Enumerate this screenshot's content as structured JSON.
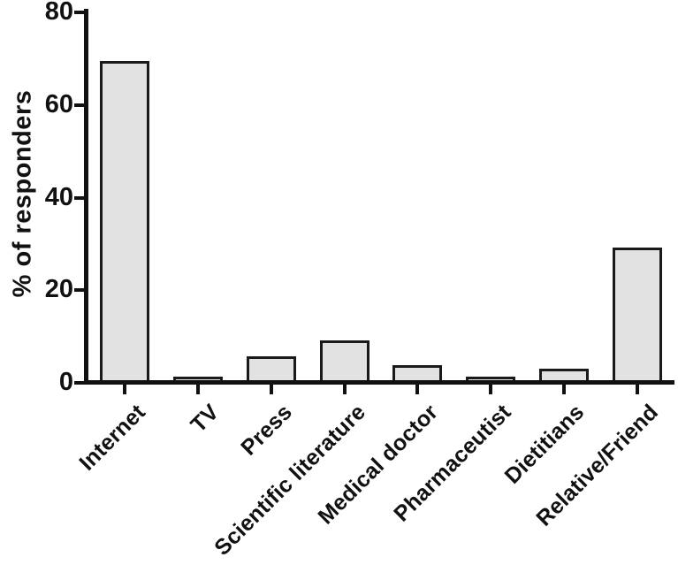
{
  "chart_data": {
    "type": "bar",
    "title": "",
    "xlabel": "",
    "ylabel": "% of responders",
    "ylim": [
      0,
      80
    ],
    "yticks": [
      0,
      20,
      40,
      60,
      80
    ],
    "grid": false,
    "legend": null,
    "categories": [
      "Internet",
      "TV",
      "Press",
      "Scientific literature",
      "Medical doctor",
      "Pharmaceutist",
      "Dietitians",
      "Relative/Friend"
    ],
    "values": [
      69.5,
      1.4,
      5.8,
      9.2,
      3.9,
      1.3,
      3.1,
      29.3
    ],
    "colors": {
      "bar_fill": "#e2e2e2",
      "bar_border": "#1a1a1a",
      "axis": "#111111",
      "text": "#111111",
      "background": "#ffffff"
    }
  }
}
